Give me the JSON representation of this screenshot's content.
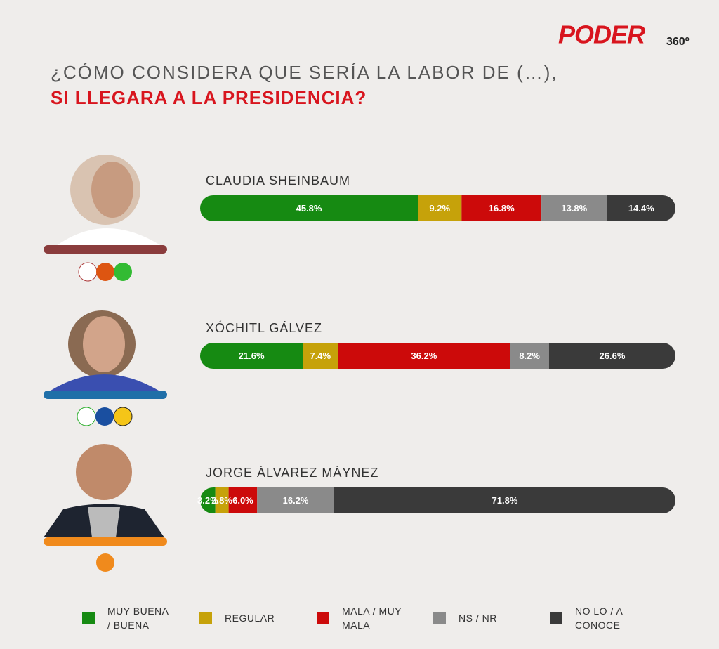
{
  "chart_data": {
    "type": "stacked-barh",
    "brand": "PODER",
    "brand_suffix": "360º",
    "title": "¿CÓMO CONSIDERA QUE SERÍA LA LABOR DE (…),",
    "subtitle": "SI LLEGARA A LA PRESIDENCIA?",
    "categories": [
      "CLAUDIA SHEINBAUM",
      "XÓCHITL GÁLVEZ",
      "JORGE ÁLVAREZ MÁYNEZ"
    ],
    "xlim": [
      0,
      100
    ],
    "series": [
      {
        "name": "MUY BUENA / BUENA",
        "color": "#168a12",
        "values": [
          45.8,
          21.6,
          3.2
        ],
        "value_labels": [
          "45.8%",
          "21.6%",
          "3.2%"
        ]
      },
      {
        "name": "REGULAR",
        "color": "#c6a20a",
        "values": [
          9.2,
          7.4,
          2.8
        ],
        "value_labels": [
          "9.2%",
          "7.4%",
          "2.8%"
        ]
      },
      {
        "name": "MALA / MUY MALA",
        "color": "#cc0a0a",
        "values": [
          16.8,
          36.2,
          6.0
        ],
        "value_labels": [
          "16.8%",
          "36.2%",
          "6.0%"
        ]
      },
      {
        "name": "NS / NR",
        "color": "#8a8a8a",
        "values": [
          13.8,
          8.2,
          16.2
        ],
        "value_labels": [
          "13.8%",
          "8.2%",
          "16.2%"
        ]
      },
      {
        "name": "NO LO / A CONOCE",
        "color": "#3a3a3a",
        "values": [
          14.4,
          26.6,
          71.8
        ],
        "value_labels": [
          "14.4%",
          "26.6%",
          "71.8%"
        ]
      }
    ]
  }
}
